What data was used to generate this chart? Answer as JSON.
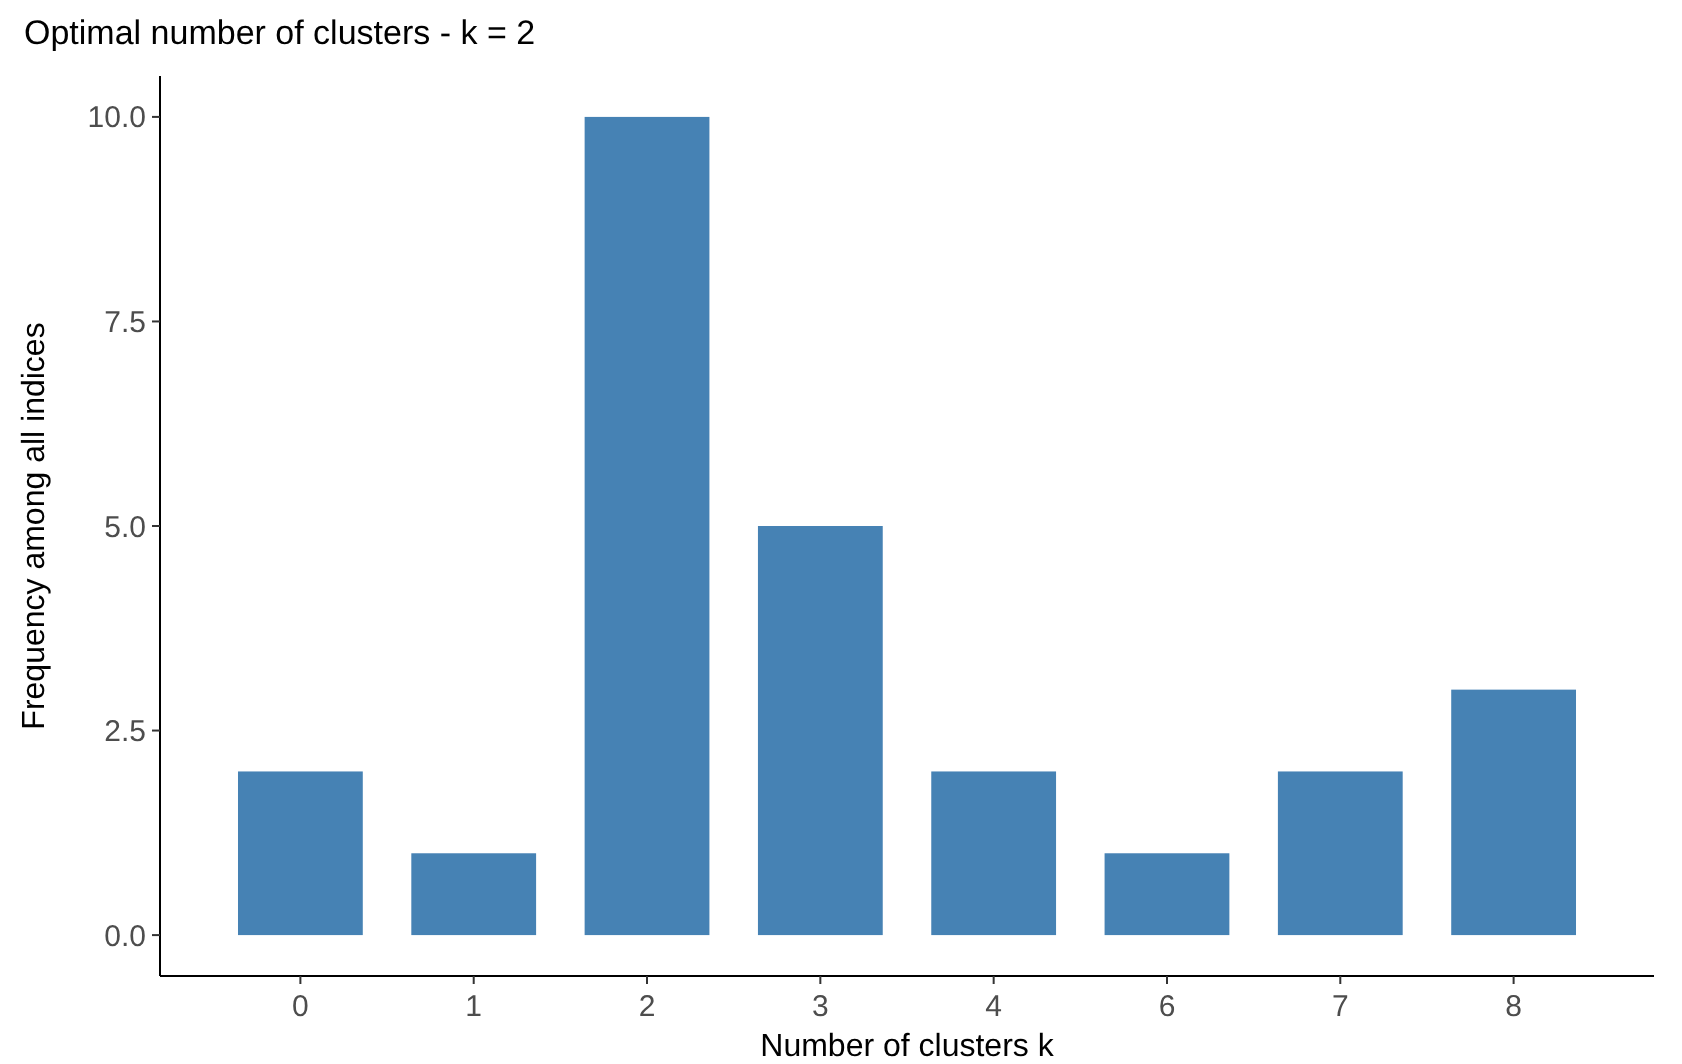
{
  "chart_data": {
    "type": "bar",
    "title": "Optimal number of clusters - k = 2",
    "xlabel": "Number of clusters k",
    "ylabel": "Frequency among all indices",
    "categories": [
      "0",
      "1",
      "2",
      "3",
      "4",
      "6",
      "7",
      "8"
    ],
    "values": [
      2,
      1,
      10,
      5,
      2,
      1,
      2,
      3
    ],
    "color": "#4682b4",
    "ylim": [
      -0.5,
      10.5
    ],
    "yticks": [
      {
        "value": 0,
        "label": "0.0"
      },
      {
        "value": 2.5,
        "label": "2.5"
      },
      {
        "value": 5,
        "label": "5.0"
      },
      {
        "value": 7.5,
        "label": "7.5"
      },
      {
        "value": 10,
        "label": "10.0"
      }
    ],
    "grid": false
  }
}
